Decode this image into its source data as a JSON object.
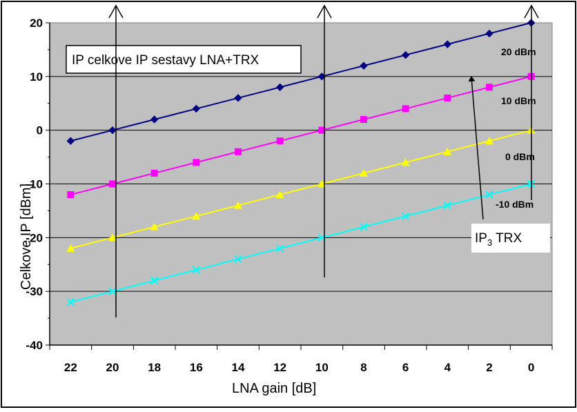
{
  "chart_data": {
    "type": "line",
    "title": "IP celkove IP sestavy LNA+TRX",
    "xlabel": "LNA gain [dB]",
    "ylabel": "Celkove IP [dBm]",
    "categories": [
      "22",
      "20",
      "18",
      "16",
      "14",
      "12",
      "10",
      "8",
      "6",
      "4",
      "2",
      "0"
    ],
    "ylim": [
      -40,
      20
    ],
    "yticks": [
      "20",
      "10",
      "0",
      "-10",
      "-20",
      "-30",
      "-40"
    ],
    "grid": "horizontal",
    "series": [
      {
        "name": "20 dBm",
        "color": "#000080",
        "marker": "diamond",
        "values": [
          -2,
          0,
          2,
          4,
          6,
          8,
          10,
          12,
          14,
          16,
          18,
          20
        ]
      },
      {
        "name": "10 dBm",
        "color": "#ff00ff",
        "marker": "square",
        "values": [
          -12,
          -10,
          -8,
          -6,
          -4,
          -2,
          0,
          2,
          4,
          6,
          8,
          10
        ]
      },
      {
        "name": "0 dBm",
        "color": "#ffff00",
        "marker": "triangle",
        "values": [
          -22,
          -20,
          -18,
          -16,
          -14,
          -12,
          -10,
          -8,
          -6,
          -4,
          -2,
          0
        ]
      },
      {
        "name": "-10 dBm",
        "color": "#00ffff",
        "marker": "x",
        "values": [
          -32,
          -30,
          -28,
          -26,
          -24,
          -22,
          -20,
          -18,
          -16,
          -14,
          -12,
          -10
        ]
      }
    ],
    "annotations": {
      "ip3_label_main": "IP",
      "ip3_label_sub": "3",
      "ip3_label_rest": " TRX"
    }
  }
}
